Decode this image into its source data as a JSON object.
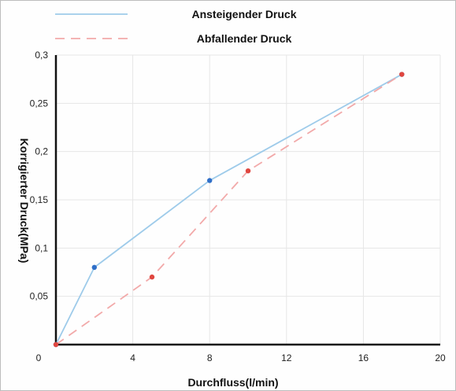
{
  "chart_data": {
    "type": "line",
    "xlabel": "Durchfluss(l/min)",
    "ylabel": "Korrigierter Druck(MPa)",
    "xlim": [
      0,
      20
    ],
    "ylim": [
      0,
      0.3
    ],
    "x_ticks": [
      0,
      4,
      8,
      12,
      16,
      20
    ],
    "x_tick_labels": [
      "0",
      "4",
      "8",
      "12",
      "16",
      "20"
    ],
    "y_ticks": [
      0.05,
      0.1,
      0.15,
      0.2,
      0.25,
      0.3
    ],
    "y_tick_labels": [
      "0,05",
      "0,1",
      "0,15",
      "0,2",
      "0,25",
      "0,3"
    ],
    "grid": true,
    "legend_position": "top",
    "series": [
      {
        "name": "Ansteigender Druck",
        "line_color": "#9ecbea",
        "marker_color": "#2f6fc8",
        "dashed": false,
        "x": [
          0,
          2,
          8,
          18
        ],
        "y": [
          0,
          0.08,
          0.17,
          0.28
        ]
      },
      {
        "name": "Abfallender Druck",
        "line_color": "#f2a9a9",
        "marker_color": "#e0463f",
        "dashed": true,
        "x": [
          0,
          5,
          10,
          18
        ],
        "y": [
          0,
          0.07,
          0.18,
          0.28
        ]
      }
    ]
  }
}
